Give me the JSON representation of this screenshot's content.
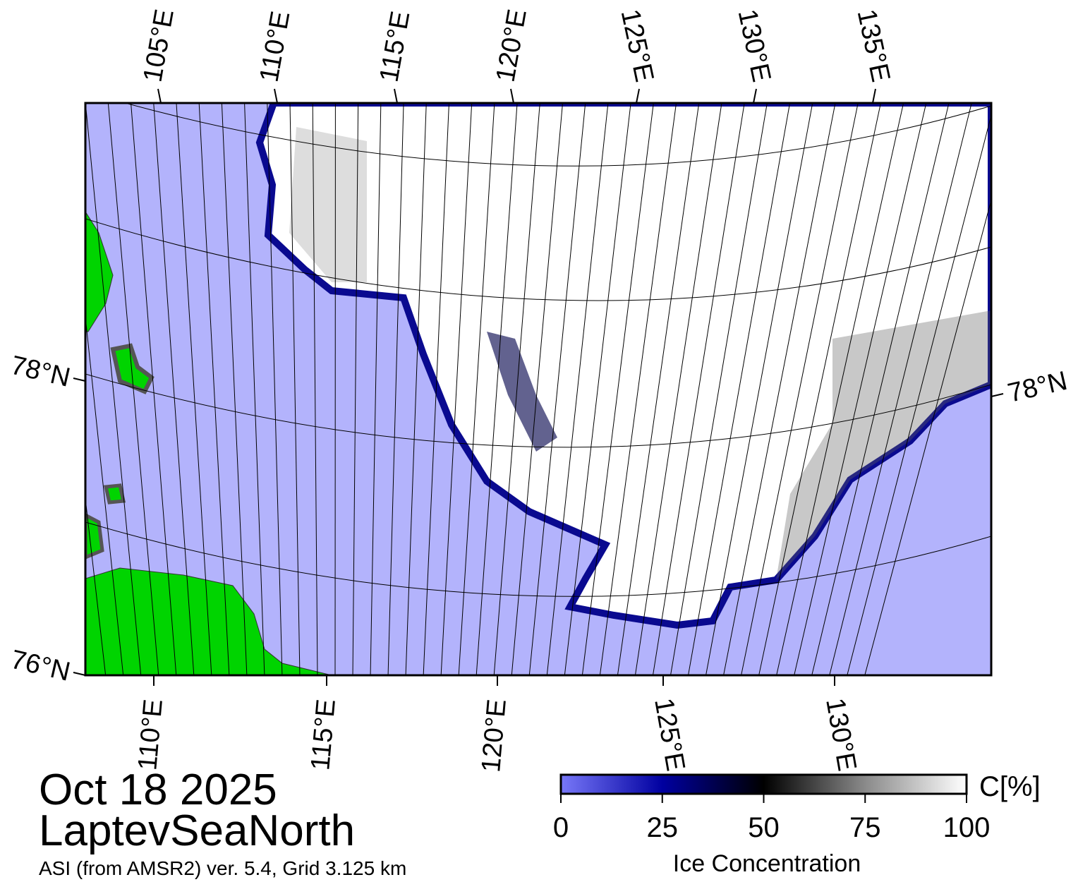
{
  "map": {
    "top_longitude_labels": [
      "105°E",
      "110°E",
      "115°E",
      "120°E",
      "125°E",
      "130°E",
      "135°E"
    ],
    "bottom_longitude_labels": [
      "110°E",
      "115°E",
      "120°E",
      "125°E",
      "130°E"
    ],
    "left_latitude_labels": [
      "78°N",
      "76°N"
    ],
    "right_latitude_labels": [
      "78°N"
    ]
  },
  "caption": {
    "date": "Oct 18 2025",
    "region": "LaptevSeaNorth",
    "source": "ASI (from AMSR2) ver. 5.4,  Grid 3.125 km"
  },
  "colorbar": {
    "lim": [
      0,
      100
    ],
    "ticks": [
      0,
      25,
      50,
      75,
      100
    ],
    "unit": "C[%]",
    "label": "Ice Concentration"
  }
}
